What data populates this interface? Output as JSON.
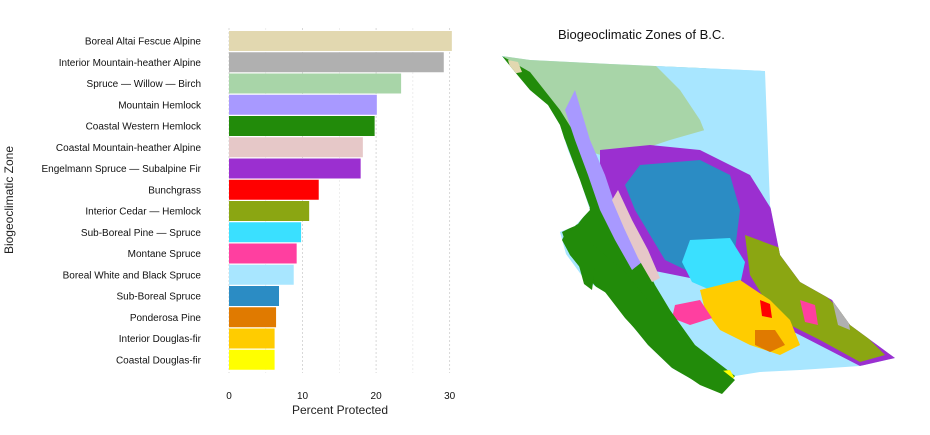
{
  "chart_data": {
    "type": "bar",
    "orientation": "horizontal",
    "title": "",
    "xlabel": "Percent Protected",
    "ylabel": "Biogeoclimatic Zone",
    "xlim": [
      0,
      31
    ],
    "xticks": [
      0,
      10,
      20,
      30
    ],
    "grid": "vertical dashed",
    "categories": [
      "Boreal Altai Fescue Alpine",
      "Interior Mountain-heather Alpine",
      "Spruce — Willow — Birch",
      "Mountain Hemlock",
      "Coastal Western Hemlock",
      "Coastal Mountain-heather Alpine",
      "Engelmann Spruce — Subalpine Fir",
      "Bunchgrass",
      "Interior Cedar — Hemlock",
      "Sub-Boreal Pine — Spruce",
      "Montane Spruce",
      "Boreal White and Black Spruce",
      "Sub-Boreal Spruce",
      "Ponderosa Pine",
      "Interior Douglas-fir",
      "Coastal Douglas-fir"
    ],
    "values": [
      30.3,
      29.2,
      23.4,
      20.1,
      19.8,
      18.2,
      17.9,
      12.2,
      10.9,
      9.8,
      9.2,
      8.8,
      6.8,
      6.4,
      6.2,
      6.2
    ],
    "colors": [
      "#E2D8B0",
      "#B0B0B0",
      "#A8D5A8",
      "#A899FF",
      "#228B0A",
      "#E6C8C8",
      "#9B2FD0",
      "#FF0000",
      "#8BA612",
      "#3AE0FF",
      "#FF3FA0",
      "#A8E6FF",
      "#2B8CC4",
      "#E07A00",
      "#FFCC00",
      "#FFFF00"
    ]
  },
  "map": {
    "title": "Biogeoclimatic Zones of B.C.",
    "zone_colors": {
      "boreal_altai_fescue_alpine": "#E2D8B0",
      "interior_mountain_heather_alpine": "#B0B0B0",
      "spruce_willow_birch": "#A8D5A8",
      "mountain_hemlock": "#A899FF",
      "coastal_western_hemlock": "#228B0A",
      "coastal_mountain_heather_alpine": "#E6C8C8",
      "engelmann_spruce_subalpine_fir": "#9B2FD0",
      "bunchgrass": "#FF0000",
      "interior_cedar_hemlock": "#8BA612",
      "sub_boreal_pine_spruce": "#3AE0FF",
      "montane_spruce": "#FF3FA0",
      "boreal_white_black_spruce": "#A8E6FF",
      "sub_boreal_spruce": "#2B8CC4",
      "ponderosa_pine": "#E07A00",
      "interior_douglas_fir": "#FFCC00",
      "coastal_douglas_fir": "#FFFF00"
    }
  }
}
